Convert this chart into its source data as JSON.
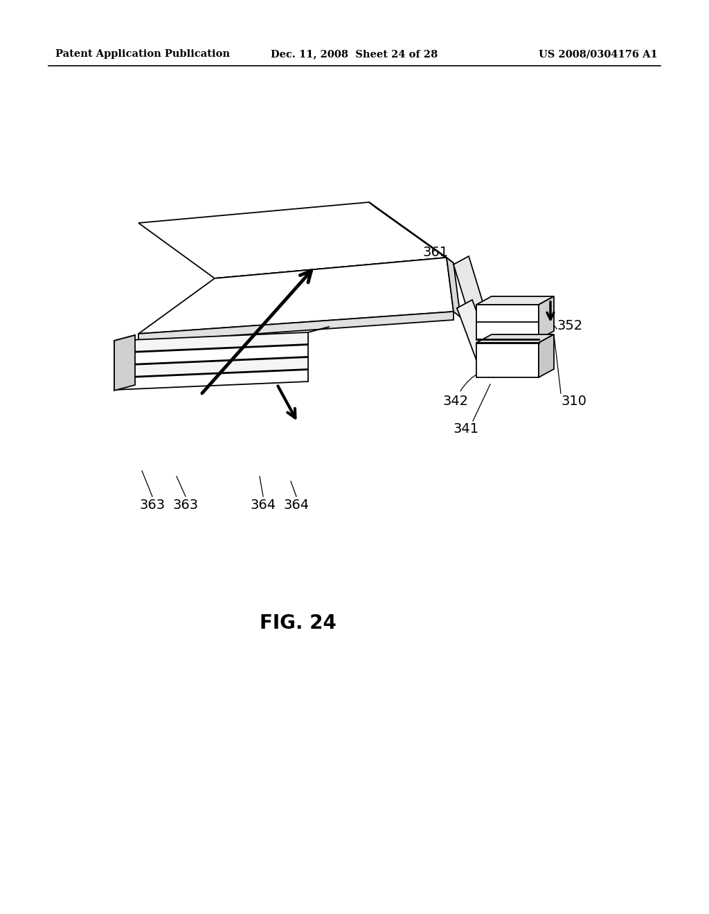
{
  "bg_color": "#ffffff",
  "line_color": "#000000",
  "header_left": "Patent Application Publication",
  "header_mid": "Dec. 11, 2008  Sheet 24 of 28",
  "header_right": "US 2008/0304176 A1",
  "fig_label": "FIG. 24",
  "lw": 1.3
}
